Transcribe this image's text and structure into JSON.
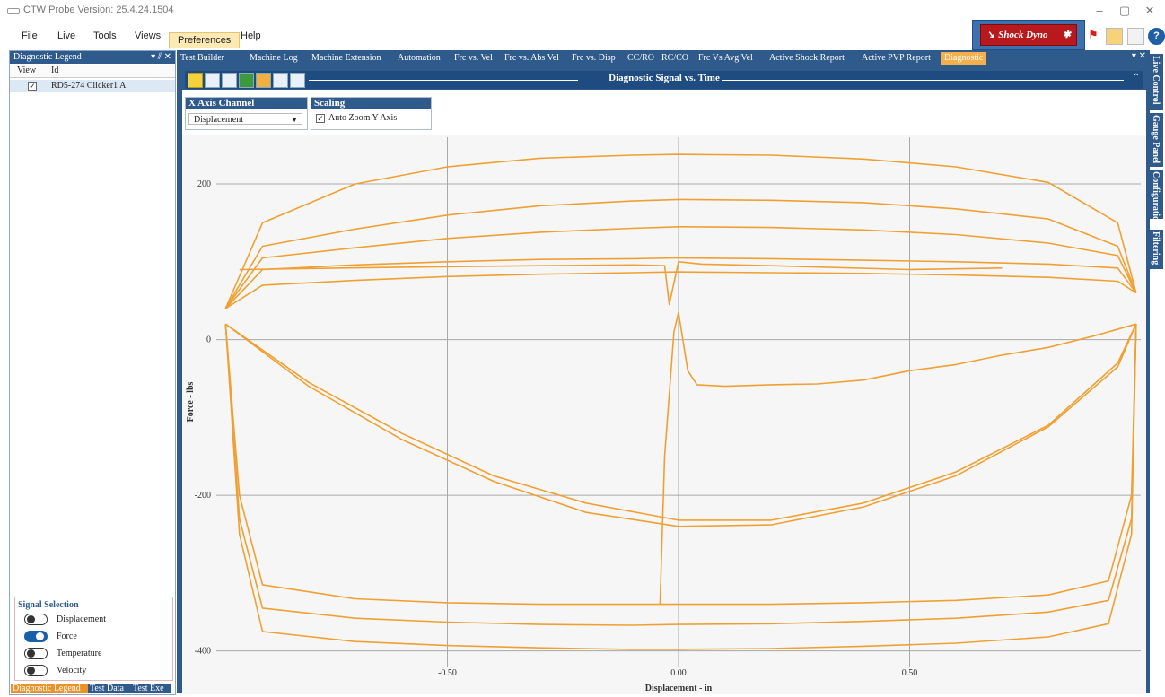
{
  "window": {
    "title": "CTW Probe Version: 25.4.24.1504",
    "minimize": "–",
    "restore": "▢",
    "close": "✕"
  },
  "menu": {
    "items": [
      "File",
      "Live",
      "Tools",
      "Views",
      "Preferences",
      "Help"
    ],
    "active_index": 4
  },
  "dyno_button": {
    "label": "Shock Dyno"
  },
  "left_pane": {
    "title": "Diagnostic Legend",
    "controls": "▾ ⫽ ✕",
    "columns": [
      "View",
      "Id"
    ],
    "rows": [
      {
        "view": true,
        "id": "RD5-274 Clicker1 A"
      }
    ],
    "signal_selection": {
      "title": "Signal Selection",
      "signals": [
        {
          "label": "Displacement",
          "on": false
        },
        {
          "label": "Force",
          "on": true
        },
        {
          "label": "Temperature",
          "on": false
        },
        {
          "label": "Velocity",
          "on": false
        }
      ]
    },
    "bottom_tabs": [
      "Diagnostic Legend",
      "Test Data",
      "Test Exe"
    ]
  },
  "doc_tabs": [
    "Test Builder",
    "Machine Log",
    "Machine Extension",
    "Automation",
    "Frc vs. Vel",
    "Frc vs. Abs Vel",
    "Frc vs. Disp",
    "CC/RO",
    "RC/CO",
    "Frc Vs Avg Vel",
    "Active Shock Report",
    "Active PVP Report",
    "Diagnostic"
  ],
  "doc_tab_controls": "▾ ✕",
  "toolbar": {
    "title": "Diagnostic Signal vs. Time",
    "collapse": "⌃"
  },
  "x_axis_channel": {
    "title": "X Axis Channel",
    "selected": "Displacement"
  },
  "scaling": {
    "title": "Scaling",
    "auto_zoom_label": "Auto Zoom Y Axis",
    "auto_zoom": true
  },
  "right_tabs": [
    "Live Control",
    "Gauge Panel",
    "Configuration",
    "Filtering"
  ],
  "colors": {
    "accent": "#2f5a8c",
    "trace": "#f0a033",
    "active_tab": "#f4b04a",
    "dyno": "#b8191c"
  },
  "chart_data": {
    "type": "line",
    "xlabel": "Displacement - in",
    "ylabel": "Force - lbs",
    "xlim": [
      -1.0,
      1.0
    ],
    "ylim": [
      -420,
      260
    ],
    "xticks": [
      -0.5,
      0.0,
      0.5
    ],
    "xtick_labels": [
      "-0.50",
      "0.00",
      "0.50"
    ],
    "yticks": [
      200,
      0,
      -200,
      -400
    ],
    "ytick_labels": [
      "200",
      "0",
      "-200",
      "-400"
    ],
    "grid": true,
    "series": [
      {
        "x": [
          -0.98,
          -0.9,
          -0.7,
          -0.5,
          -0.3,
          -0.1,
          0.0,
          0.2,
          0.4,
          0.6,
          0.8,
          0.95,
          0.99
        ],
        "y": [
          40,
          150,
          200,
          222,
          233,
          237,
          238,
          237,
          232,
          222,
          202,
          150,
          60
        ]
      },
      {
        "x": [
          -0.98,
          -0.9,
          -0.7,
          -0.5,
          -0.3,
          -0.1,
          0.0,
          0.2,
          0.4,
          0.6,
          0.8,
          0.95,
          0.99
        ],
        "y": [
          40,
          120,
          142,
          160,
          172,
          178,
          180,
          179,
          176,
          168,
          155,
          120,
          60
        ]
      },
      {
        "x": [
          -0.98,
          -0.9,
          -0.7,
          -0.5,
          -0.3,
          -0.1,
          0.0,
          0.2,
          0.4,
          0.6,
          0.8,
          0.95,
          0.99
        ],
        "y": [
          40,
          105,
          118,
          130,
          138,
          143,
          145,
          144,
          141,
          135,
          124,
          108,
          60
        ]
      },
      {
        "x": [
          -0.98,
          -0.9,
          -0.7,
          -0.5,
          -0.3,
          -0.1,
          0.0,
          0.2,
          0.4,
          0.6,
          0.8,
          0.95,
          0.99
        ],
        "y": [
          40,
          90,
          96,
          100,
          103,
          104,
          105,
          104,
          102,
          100,
          97,
          92,
          60
        ]
      },
      {
        "x": [
          -0.98,
          -0.9,
          -0.7,
          -0.5,
          -0.3,
          -0.1,
          0.0,
          0.2,
          0.4,
          0.6,
          0.8,
          0.95,
          0.99
        ],
        "y": [
          40,
          70,
          76,
          81,
          84,
          86,
          87,
          86,
          85,
          83,
          80,
          75,
          60
        ]
      },
      {
        "x": [
          -0.98,
          -0.8,
          -0.6,
          -0.4,
          -0.2,
          0.0,
          0.2,
          0.4,
          0.6,
          0.8,
          0.95,
          0.99
        ],
        "y": [
          20,
          -55,
          -120,
          -175,
          -210,
          -232,
          -232,
          -210,
          -170,
          -110,
          -30,
          20
        ]
      },
      {
        "x": [
          -0.98,
          -0.8,
          -0.6,
          -0.4,
          -0.2,
          0.0,
          0.2,
          0.4,
          0.6,
          0.8,
          0.95,
          0.99
        ],
        "y": [
          20,
          -60,
          -128,
          -182,
          -222,
          -240,
          -238,
          -215,
          -175,
          -112,
          -35,
          20
        ]
      },
      {
        "x": [
          -0.98,
          -0.95,
          -0.9,
          -0.7,
          -0.5,
          -0.3,
          -0.1,
          0.0,
          0.2,
          0.4,
          0.6,
          0.8,
          0.93,
          0.98,
          0.99
        ],
        "y": [
          20,
          -200,
          -315,
          -333,
          -338,
          -340,
          -340,
          -340,
          -340,
          -338,
          -335,
          -328,
          -310,
          -200,
          20
        ]
      },
      {
        "x": [
          -0.98,
          -0.95,
          -0.9,
          -0.7,
          -0.5,
          -0.3,
          -0.1,
          0.0,
          0.2,
          0.4,
          0.6,
          0.8,
          0.93,
          0.98,
          0.99
        ],
        "y": [
          20,
          -230,
          -345,
          -358,
          -363,
          -366,
          -367,
          -366,
          -365,
          -362,
          -358,
          -350,
          -335,
          -230,
          20
        ]
      },
      {
        "x": [
          -0.98,
          -0.95,
          -0.9,
          -0.7,
          -0.5,
          -0.3,
          -0.1,
          0.0,
          0.2,
          0.4,
          0.6,
          0.8,
          0.93,
          0.98,
          0.99
        ],
        "y": [
          20,
          -250,
          -375,
          -388,
          -393,
          -396,
          -398,
          -398,
          -397,
          -394,
          -390,
          -382,
          -365,
          -250,
          20
        ]
      },
      {
        "x": [
          -0.04,
          -0.03,
          -0.01,
          0.0,
          0.02,
          0.04,
          0.1,
          0.2,
          0.3,
          0.4,
          0.5,
          0.6,
          0.7,
          0.8,
          0.9,
          0.99
        ],
        "y": [
          -340,
          -150,
          10,
          35,
          -40,
          -58,
          -60,
          -58,
          -57,
          -52,
          -40,
          -32,
          -20,
          -10,
          5,
          20
        ]
      },
      {
        "x": [
          -0.95,
          -0.6,
          -0.3,
          -0.1,
          -0.03,
          -0.02,
          0.0,
          0.05,
          0.2,
          0.5,
          0.7
        ],
        "y": [
          90,
          93,
          95,
          96,
          95,
          45,
          100,
          97,
          95,
          90,
          92
        ]
      }
    ]
  }
}
